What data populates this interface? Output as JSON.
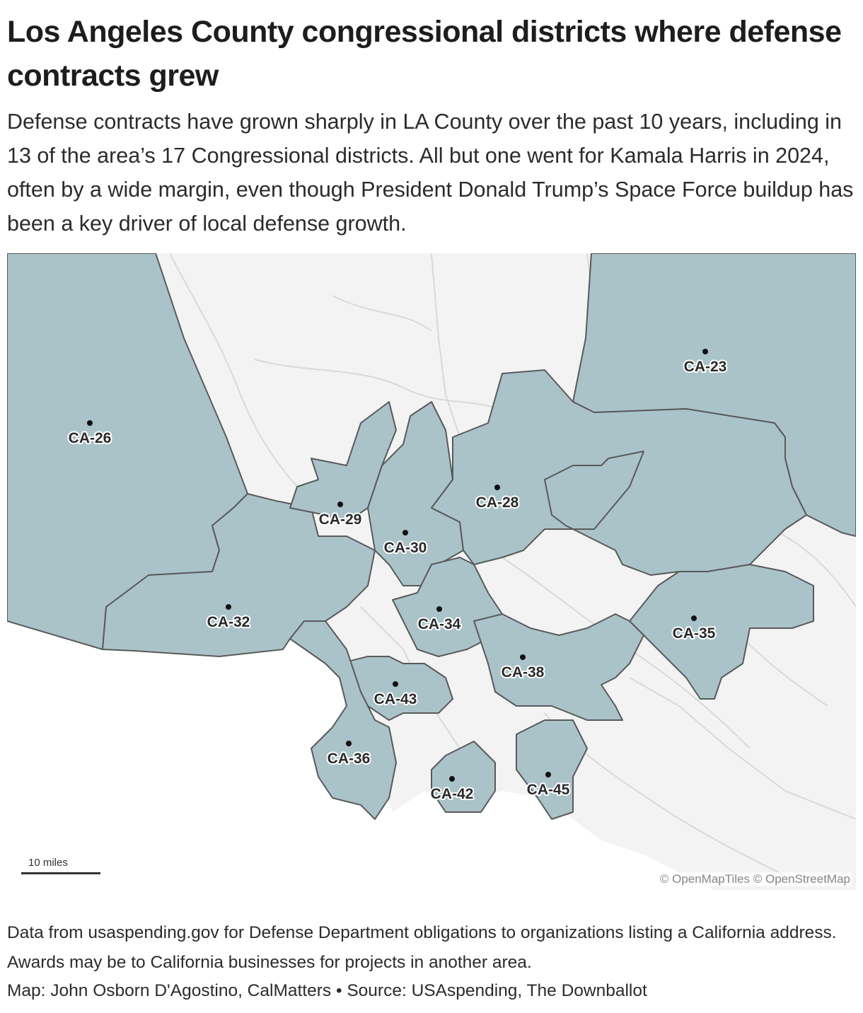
{
  "header": {
    "title": "Los Angeles County congressional districts where defense contracts grew",
    "subtitle": "Defense contracts have grown sharply in LA County over the past 10 years, including in 13 of the area’s 17 Congressional districts. All but one went for Kamala Harris in 2024, often by a wide margin, even though President Donald Trump’s Space Force buildup has been a key driver of local defense growth."
  },
  "map": {
    "colors": {
      "district_fill": "#a9c3c9",
      "district_border": "#5a5a5a",
      "land": "#f3f3f3",
      "water": "#ffffff",
      "roads": "#d6d6d6"
    },
    "districts": [
      {
        "label": "CA-23"
      },
      {
        "label": "CA-26"
      },
      {
        "label": "CA-28"
      },
      {
        "label": "CA-29"
      },
      {
        "label": "CA-30"
      },
      {
        "label": "CA-32"
      },
      {
        "label": "CA-34"
      },
      {
        "label": "CA-35"
      },
      {
        "label": "CA-38"
      },
      {
        "label": "CA-43"
      },
      {
        "label": "CA-36"
      },
      {
        "label": "CA-42"
      },
      {
        "label": "CA-45"
      }
    ],
    "scale_label": "10 miles",
    "attribution": "© OpenMapTiles © OpenStreetMap"
  },
  "footer": {
    "note": "Data from usaspending.gov for Defense Department obligations to organizations listing a California address. Awards may be to California businesses for projects in another area.",
    "credit": "Map: John Osborn D'Agostino, CalMatters • Source: USAspending, The Downballot"
  }
}
